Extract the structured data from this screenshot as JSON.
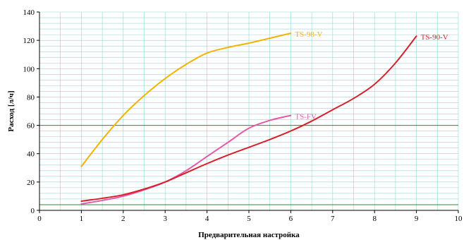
{
  "chart_data": {
    "type": "line",
    "title": "",
    "xlabel": "Предварительная настройка",
    "ylabel": "Расход  [л/ч]",
    "xlim": [
      0,
      10
    ],
    "ylim": [
      0,
      140
    ],
    "xticks": [
      "0",
      "1",
      "2",
      "3",
      "4",
      "5",
      "6",
      "7",
      "8",
      "9",
      "10"
    ],
    "yticks": [
      "0",
      "20",
      "40",
      "60",
      "80",
      "100",
      "120",
      "140"
    ],
    "grid": true,
    "reference_lines_y": [
      4,
      60
    ],
    "series": [
      {
        "name": "TS-98-V",
        "color": "#f2b300",
        "x": [
          1,
          1.5,
          2,
          2.5,
          3,
          3.5,
          4,
          4.5,
          5,
          5.5,
          6
        ],
        "y": [
          31,
          50,
          67,
          81,
          93,
          103,
          111,
          115,
          118,
          121.5,
          125
        ]
      },
      {
        "name": "TS-FV",
        "color": "#e25aa8",
        "x": [
          1,
          1.5,
          2,
          2.5,
          3,
          3.5,
          4,
          4.5,
          5,
          5.5,
          6
        ],
        "y": [
          4.5,
          7,
          10,
          14.5,
          20,
          28,
          38,
          48,
          58,
          63.5,
          67
        ]
      },
      {
        "name": "TS-90-V",
        "color": "#d8202b",
        "x": [
          1,
          1.5,
          2,
          2.5,
          3,
          3.5,
          4,
          4.5,
          5,
          5.5,
          6,
          6.5,
          7,
          7.5,
          8,
          8.5,
          9
        ],
        "y": [
          6.5,
          8.5,
          11,
          15,
          20,
          26.5,
          33,
          39,
          44.5,
          50,
          56,
          63,
          71,
          79,
          89,
          104,
          123
        ]
      }
    ]
  }
}
